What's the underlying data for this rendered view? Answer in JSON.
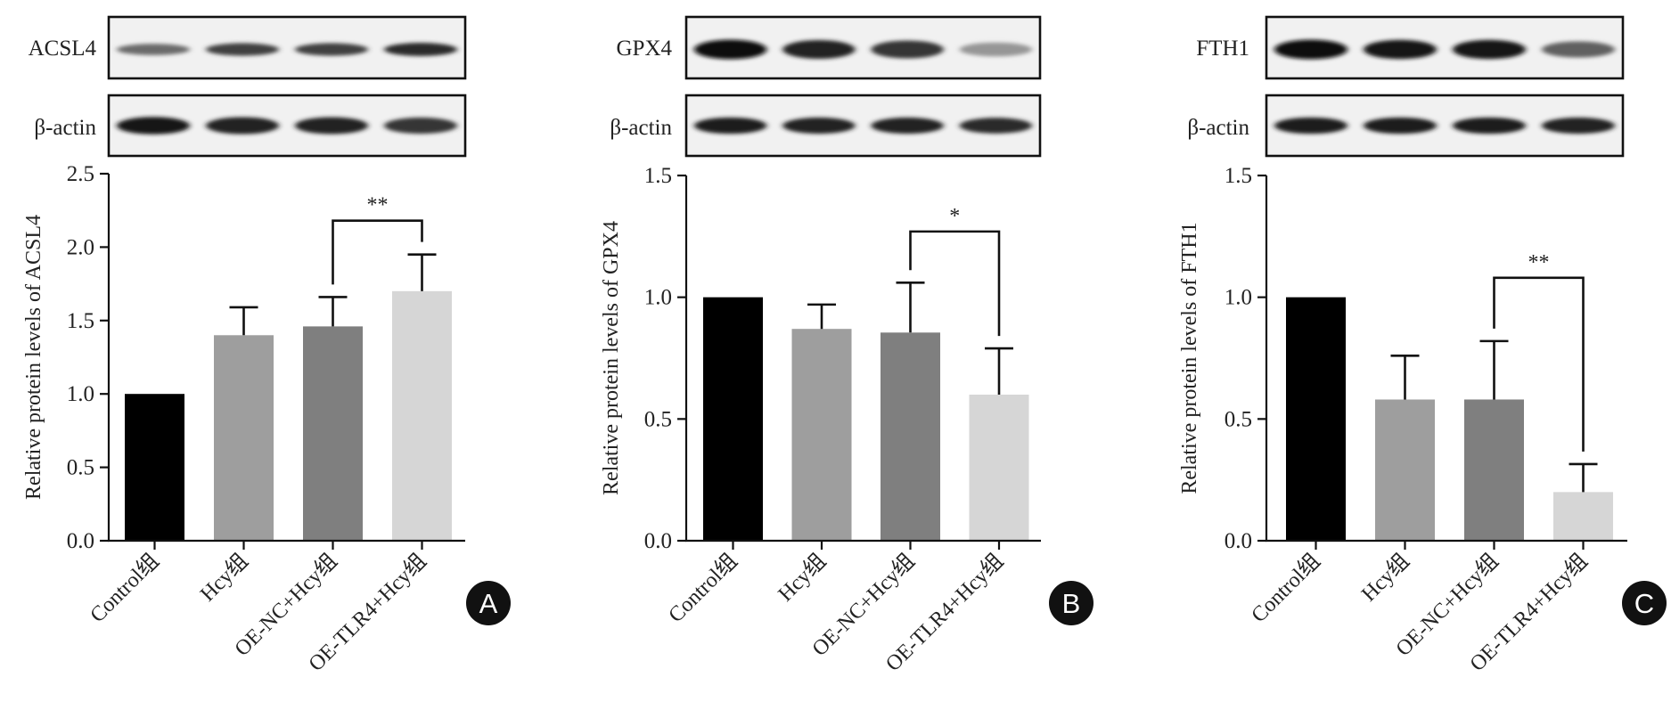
{
  "figure": {
    "panels": [
      {
        "letter": "A",
        "blot_labels": [
          "ACSL4",
          "β-actin"
        ],
        "target_intensity": [
          0.55,
          0.75,
          0.75,
          0.85
        ],
        "actin_intensity": [
          0.95,
          0.9,
          0.88,
          0.8
        ],
        "colors": {
          "bars": [
            "#000000",
            "#9e9e9e",
            "#7f7f7f",
            "#d6d6d6"
          ]
        }
      },
      {
        "letter": "B",
        "blot_labels": [
          "GPX4",
          "β-actin"
        ],
        "target_intensity": [
          1.0,
          0.9,
          0.8,
          0.35
        ],
        "actin_intensity": [
          0.92,
          0.9,
          0.9,
          0.85
        ],
        "colors": {
          "bars": [
            "#000000",
            "#9e9e9e",
            "#7f7f7f",
            "#d6d6d6"
          ]
        }
      },
      {
        "letter": "C",
        "blot_labels": [
          "FTH1",
          "β-actin"
        ],
        "target_intensity": [
          1.0,
          0.95,
          0.95,
          0.6
        ],
        "actin_intensity": [
          0.92,
          0.92,
          0.92,
          0.9
        ],
        "colors": {
          "bars": [
            "#000000",
            "#9e9e9e",
            "#7f7f7f",
            "#d6d6d6"
          ]
        }
      }
    ]
  },
  "chart_data": [
    {
      "type": "bar",
      "categories": [
        "Control组",
        "Hcy组",
        "OE-NC+Hcy组",
        "OE-TLR4+Hcy组"
      ],
      "values": [
        1.0,
        1.4,
        1.46,
        1.7
      ],
      "errors": [
        0,
        0.19,
        0.2,
        0.25
      ],
      "ylabel": "Relative protein levels of ACSL4",
      "ylim": [
        0,
        2.5
      ],
      "yticks": [
        "0.0",
        "0.5",
        "1.0",
        "1.5",
        "2.0",
        "2.5"
      ],
      "ytick_values": [
        0,
        0.5,
        1.0,
        1.5,
        2.0,
        2.5
      ],
      "significance": {
        "between": [
          2,
          3
        ],
        "label": "**",
        "y": 2.18
      }
    },
    {
      "type": "bar",
      "categories": [
        "Control组",
        "Hcy组",
        "OE-NC+Hcy组",
        "OE-TLR4+Hcy组"
      ],
      "values": [
        1.0,
        0.87,
        0.855,
        0.6
      ],
      "errors": [
        0,
        0.1,
        0.205,
        0.19
      ],
      "ylabel": "Relative protein levels of GPX4",
      "ylim": [
        0,
        1.5
      ],
      "yticks": [
        "0.0",
        "0.5",
        "1.0",
        "1.5"
      ],
      "ytick_values": [
        0,
        0.5,
        1.0,
        1.5
      ],
      "significance": {
        "between": [
          2,
          3
        ],
        "label": "*",
        "y": 1.27
      }
    },
    {
      "type": "bar",
      "categories": [
        "Control组",
        "Hcy组",
        "OE-NC+Hcy组",
        "OE-TLR4+Hcy组"
      ],
      "values": [
        1.0,
        0.58,
        0.58,
        0.2
      ],
      "errors": [
        0,
        0.18,
        0.24,
        0.115
      ],
      "ylabel": "Relative protein levels of FTH1",
      "ylim": [
        0,
        1.5
      ],
      "yticks": [
        "0.0",
        "0.5",
        "1.0",
        "1.5"
      ],
      "ytick_values": [
        0,
        0.5,
        1.0,
        1.5
      ],
      "significance": {
        "between": [
          2,
          3
        ],
        "label": "**",
        "y": 1.08
      }
    }
  ]
}
